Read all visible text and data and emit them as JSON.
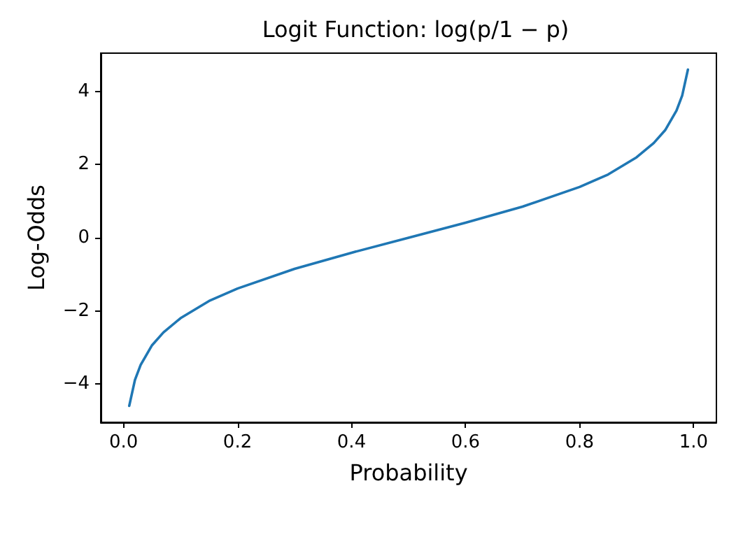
{
  "chart_data": {
    "type": "line",
    "title": "Logit Function: log(p/1 − p)",
    "xlabel": "Probability",
    "ylabel": "Log-Odds",
    "x": [
      0.01,
      0.02,
      0.03,
      0.05,
      0.07,
      0.1,
      0.15,
      0.2,
      0.3,
      0.4,
      0.5,
      0.6,
      0.7,
      0.8,
      0.85,
      0.9,
      0.93,
      0.95,
      0.97,
      0.98,
      0.99
    ],
    "series": [
      {
        "color": "#1f77b4",
        "values": [
          -4.6,
          -3.89,
          -3.48,
          -2.94,
          -2.59,
          -2.2,
          -1.73,
          -1.39,
          -0.85,
          -0.41,
          0,
          0.41,
          0.85,
          1.39,
          1.73,
          2.2,
          2.59,
          2.94,
          3.48,
          3.89,
          4.6
        ]
      }
    ],
    "xlim": [
      -0.04,
      1.04
    ],
    "ylim": [
      -5.05,
      5.05
    ],
    "xticks": [
      {
        "value": 0,
        "label": "0.0"
      },
      {
        "value": 0.2,
        "label": "0.2"
      },
      {
        "value": 0.4,
        "label": "0.4"
      },
      {
        "value": 0.6,
        "label": "0.6"
      },
      {
        "value": 0.8,
        "label": "0.8"
      },
      {
        "value": 1,
        "label": "1.0"
      }
    ],
    "yticks": [
      {
        "value": -4,
        "label": "−4"
      },
      {
        "value": -2,
        "label": "−2"
      },
      0,
      2,
      4
    ],
    "grid": false,
    "marker": "none",
    "line_style": "solid"
  }
}
